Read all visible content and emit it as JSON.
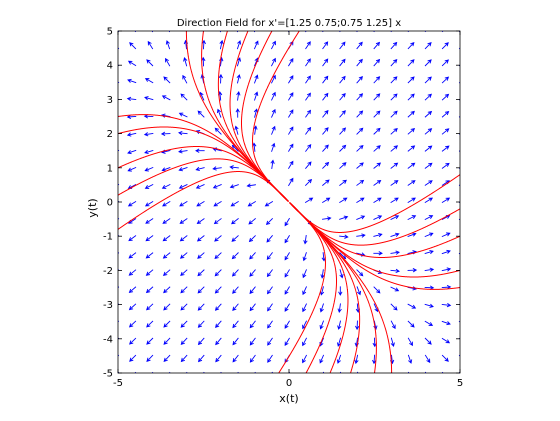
{
  "chart_data": {
    "type": "direction-field",
    "title": "Direction Field for x'=[1.25 0.75;0.75 1.25] x",
    "xlabel": "x(t)",
    "ylabel": "y(t)",
    "xlim": [
      -5,
      5
    ],
    "ylim": [
      -5,
      5
    ],
    "xticks": [
      -5,
      0,
      5
    ],
    "yticks": [
      -5,
      -4,
      -3,
      -2,
      -1,
      0,
      1,
      2,
      3,
      4,
      5
    ],
    "matrix": [
      [
        1.25,
        0.75
      ],
      [
        0.75,
        1.25
      ]
    ],
    "grid": false,
    "field_color": "#0000ff",
    "trajectory_color": "#ff0000",
    "trajectory_starts": [
      [
        -3.0,
        5.0
      ],
      [
        -2.5,
        5.0
      ],
      [
        -1.8,
        5.0
      ],
      [
        -1.2,
        5.0
      ],
      [
        -0.5,
        5.0
      ],
      [
        0.3,
        5.0
      ],
      [
        -5.0,
        2.5
      ],
      [
        -5.0,
        2.0
      ],
      [
        -5.0,
        1.0
      ],
      [
        -5.0,
        0.2
      ],
      [
        -5.0,
        -0.8
      ],
      [
        3.0,
        -5.0
      ],
      [
        2.5,
        -5.0
      ],
      [
        1.8,
        -5.0
      ],
      [
        1.2,
        -5.0
      ],
      [
        0.5,
        -5.0
      ],
      [
        -0.3,
        -5.0
      ],
      [
        5.0,
        -2.5
      ],
      [
        5.0,
        -2.0
      ],
      [
        5.0,
        -1.0
      ],
      [
        5.0,
        -0.2
      ],
      [
        5.0,
        0.8
      ]
    ]
  }
}
